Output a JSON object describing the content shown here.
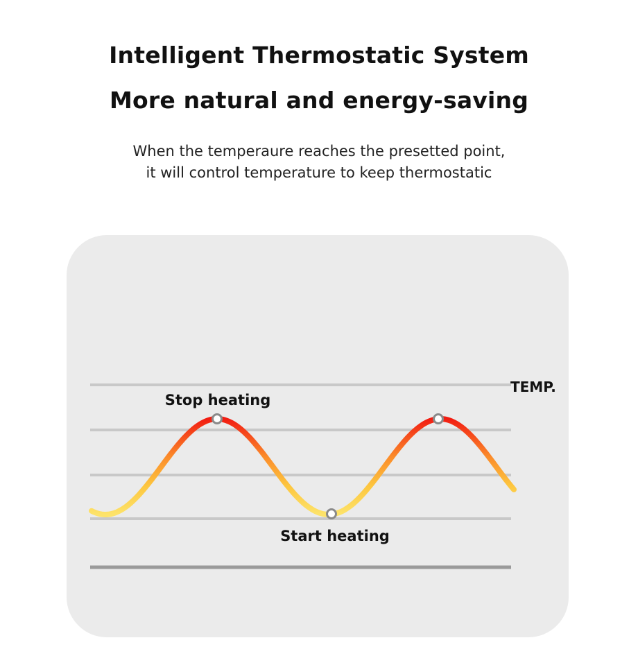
{
  "header": {
    "title_line1": "Intelligent Thermostatic System",
    "title_line2": "More natural and energy-saving",
    "description_line1": "When the temperaure reaches the presetted point,",
    "description_line2": "it will control temperature to keep thermostatic"
  },
  "diagram": {
    "axis_label": "TEMP.",
    "peak_label": "Stop heating",
    "trough_label": "Start heating",
    "colors": {
      "panel": "#ebebeb",
      "gridline": "#c8c8c8",
      "baseline": "#9a9a9a",
      "wave_low": "#fde36a",
      "wave_mid": "#fb8c2a",
      "wave_high": "#f21d12",
      "marker_stroke": "#8a8a8a"
    }
  }
}
